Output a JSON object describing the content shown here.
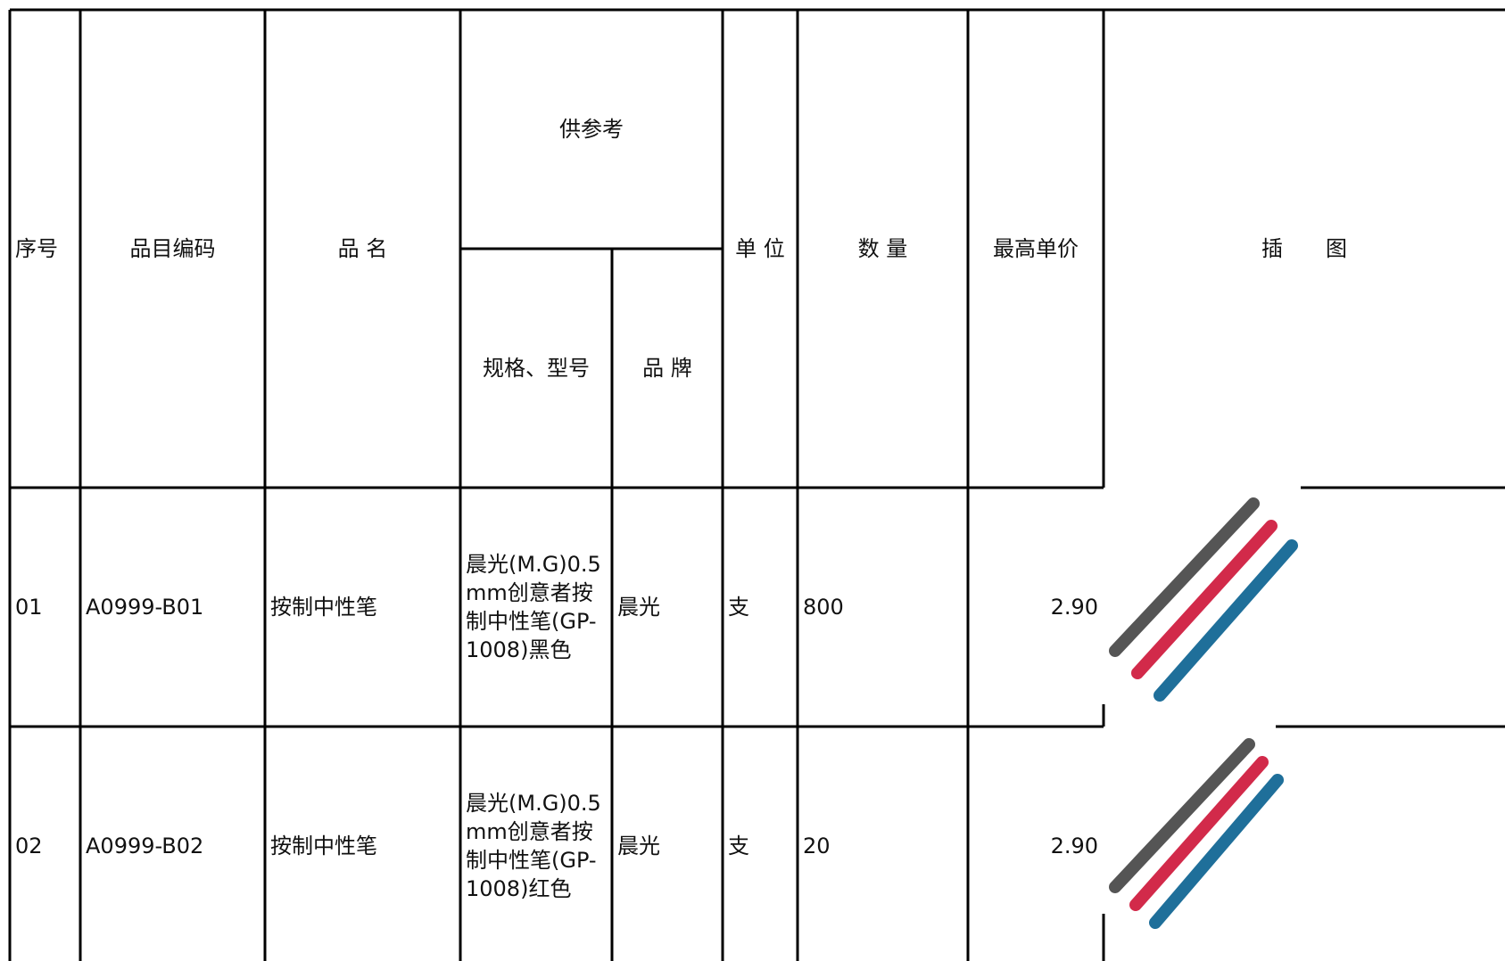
{
  "header": {
    "seq": "序号",
    "code": "品目编码",
    "name": "品 名",
    "reference": "供参考",
    "spec": "规格、型号",
    "brand": "品 牌",
    "unit": "单 位",
    "quantity": "数 量",
    "max_price": "最高单价",
    "image": "插　　图"
  },
  "rows": [
    [
      "01",
      "A0999-B01",
      "按制中性笔",
      "晨光(M.G)0.5mm创意者按制中性笔(GP-1008)黑色",
      "晨光",
      "支",
      "800",
      "2.90"
    ],
    [
      "02",
      "A0999-B02",
      "按制中性笔",
      "晨光(M.G)0.5mm创意者按制中性笔(GP-1008)红色",
      "晨光",
      "支",
      "20",
      "2.90"
    ]
  ]
}
